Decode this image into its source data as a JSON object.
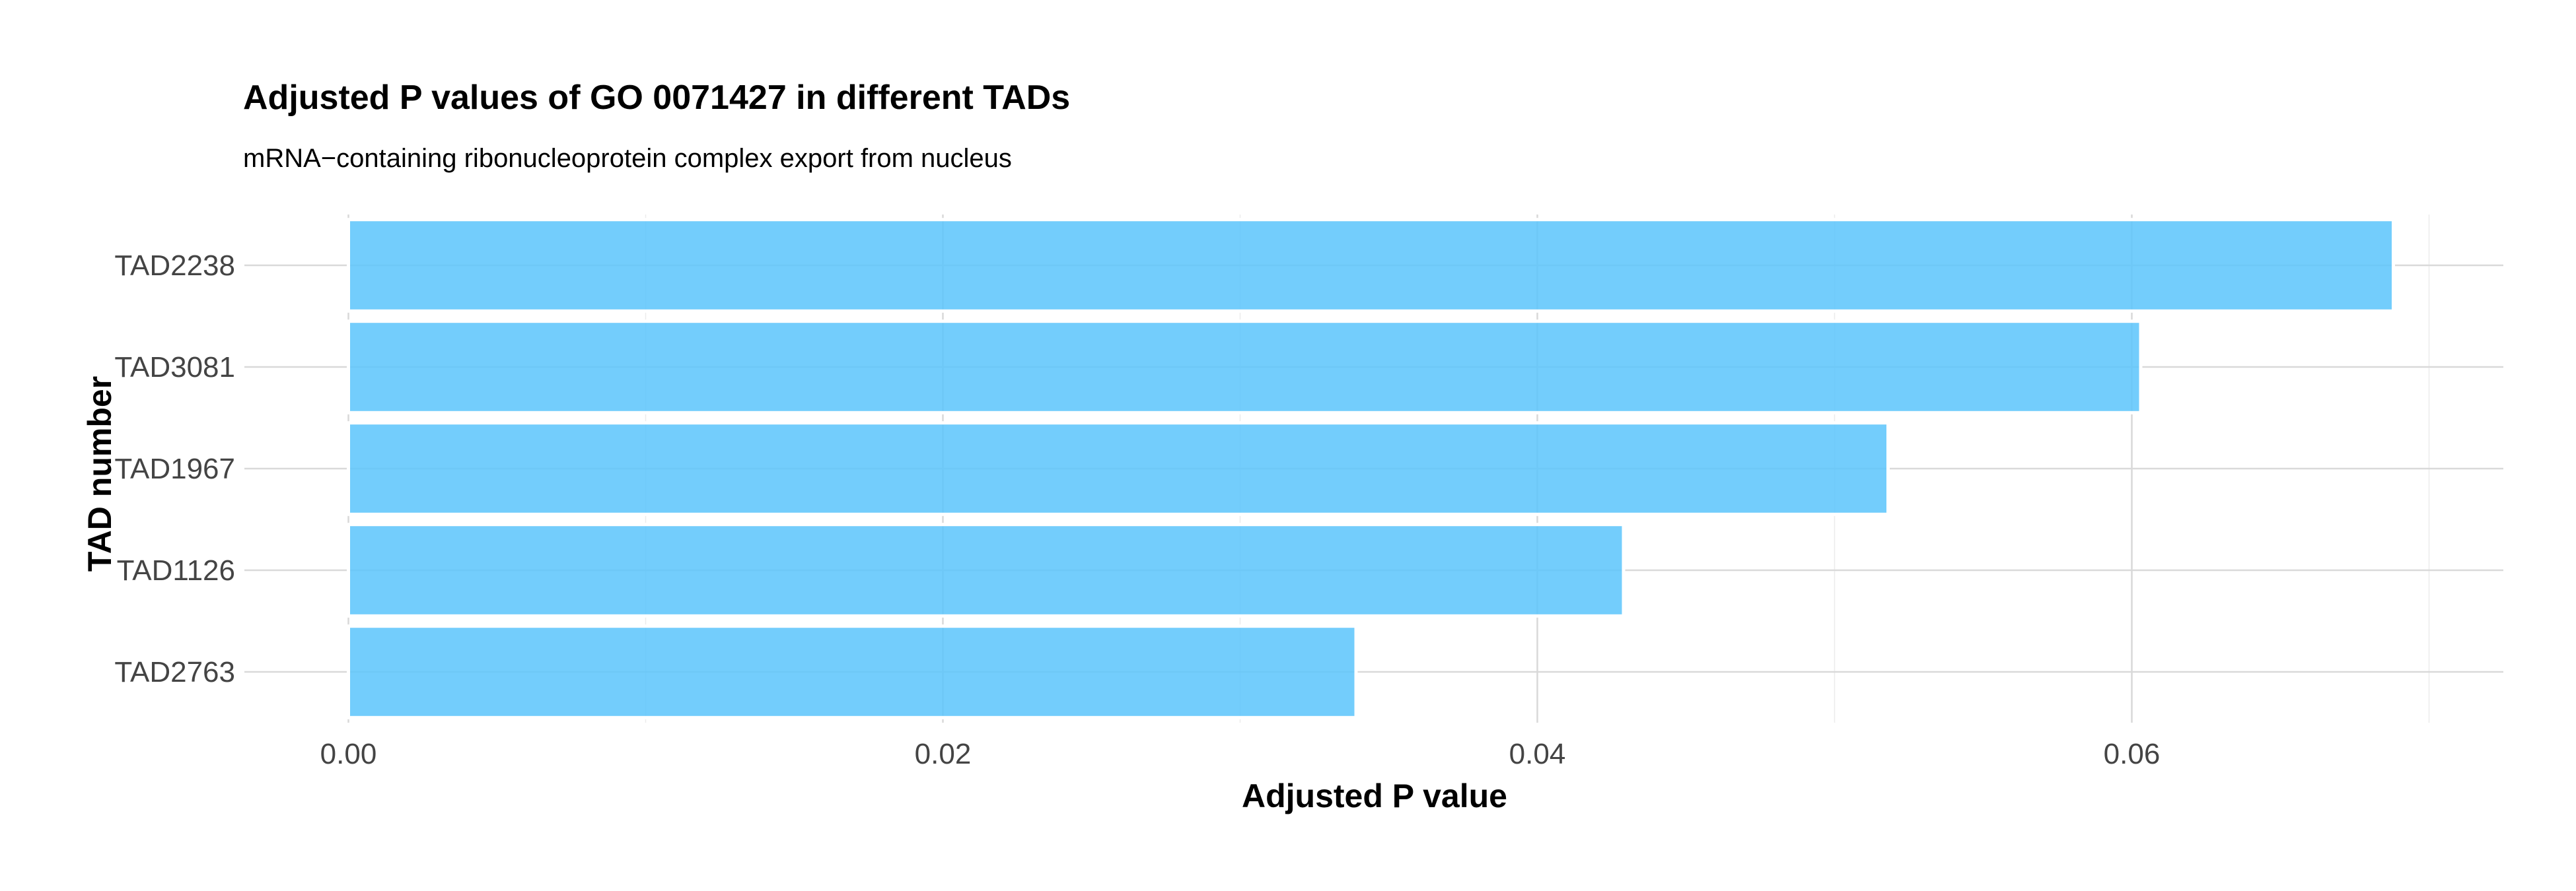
{
  "chart_data": {
    "type": "bar",
    "orientation": "horizontal",
    "title": "Adjusted P values of GO 0071427 in different TADs",
    "subtitle": "mRNA−containing ribonucleoprotein complex export from nucleus",
    "xlabel": "Adjusted P value",
    "ylabel": "TAD number",
    "categories": [
      "TAD2238",
      "TAD3081",
      "TAD1967",
      "TAD1126",
      "TAD2763"
    ],
    "values": [
      0.0688,
      0.0603,
      0.0518,
      0.0429,
      0.0339
    ],
    "xlim": [
      -0.0035,
      0.0725
    ],
    "xticks": [
      0.0,
      0.02,
      0.04,
      0.06
    ],
    "xtick_labels": [
      "0.00",
      "0.02",
      "0.04",
      "0.06"
    ],
    "minor_xticks": [
      0.01,
      0.03,
      0.05,
      0.07
    ],
    "grid": true,
    "legend": "none",
    "bar_color": "#5bc4fb"
  }
}
